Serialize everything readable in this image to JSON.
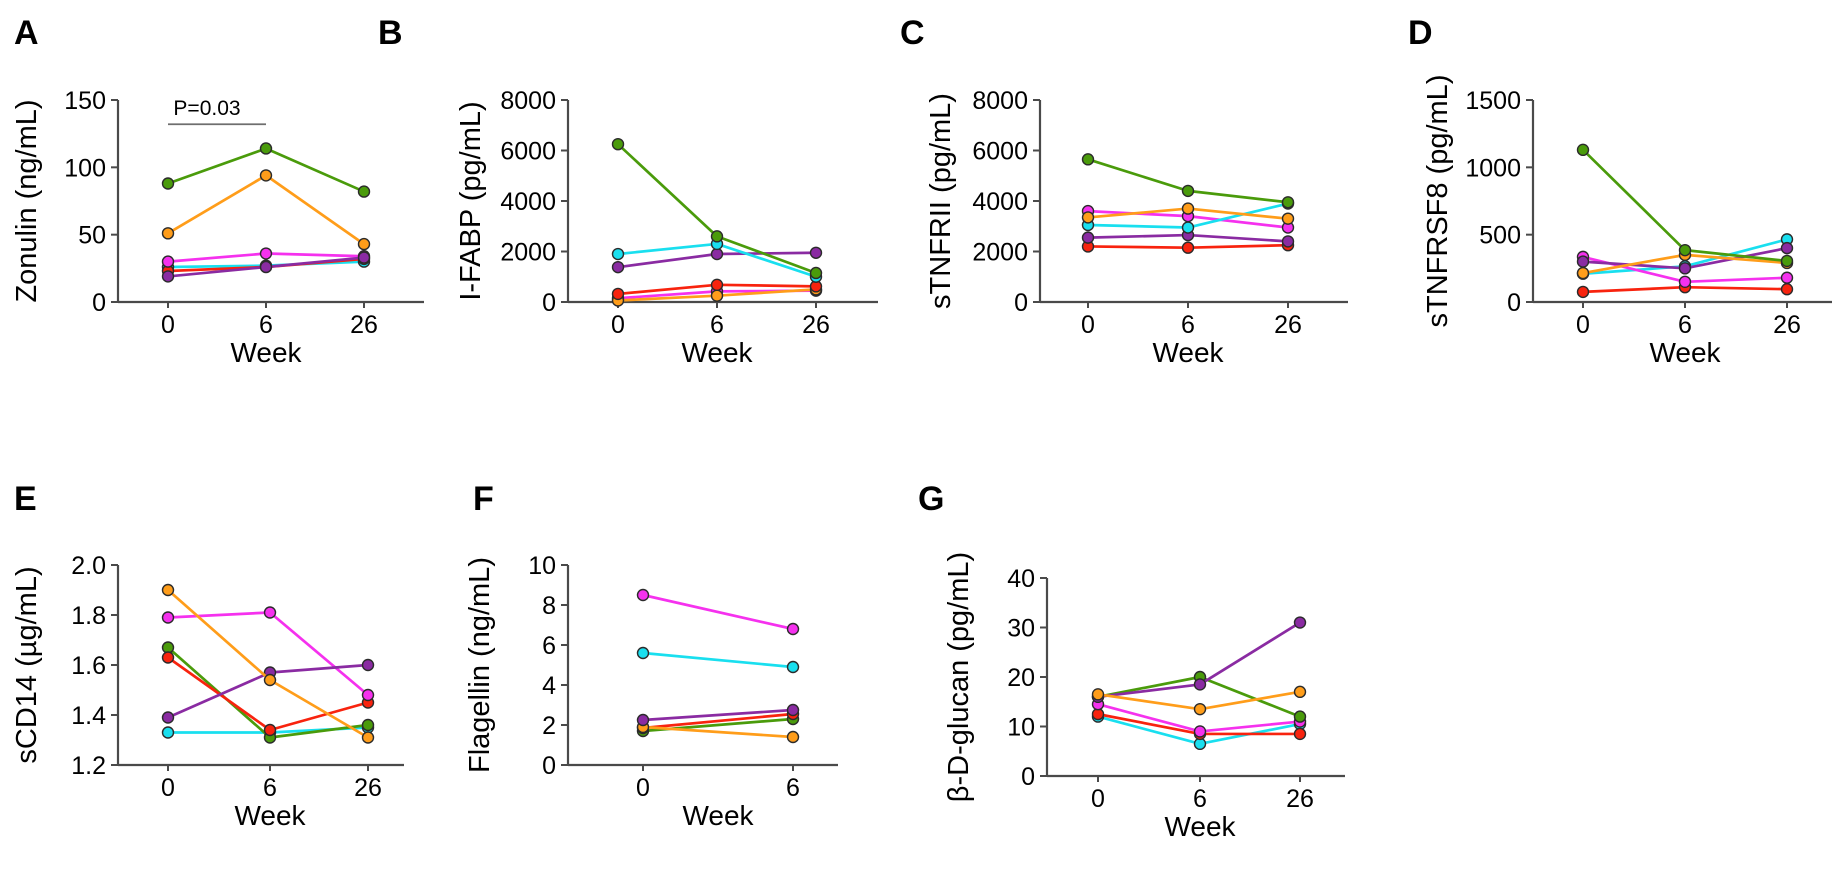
{
  "figure": {
    "background": "#ffffff",
    "text_color": "#000000",
    "axis_color": "#4a4a4a",
    "annotation_line_color": "#6e6e6e",
    "marker_outline": "#2b2b2b"
  },
  "palette": {
    "green": "#4a9b0b",
    "orange": "#ff9d1a",
    "red": "#f8230e",
    "magenta": "#f531ee",
    "purple": "#8a2ba2",
    "cyan": "#19dfef"
  },
  "chart_data": [
    {
      "id": "A",
      "panel_label": "A",
      "type": "line",
      "ylabel": "Zonulin (ng/mL)",
      "xlabel": "Week",
      "categories": [
        "0",
        "6",
        "26"
      ],
      "ylim": [
        0,
        150
      ],
      "yticks": [
        "0",
        "50",
        "100",
        "150"
      ],
      "annotation": {
        "text": "P=0.03",
        "from_cat": 0,
        "to_cat": 1,
        "line_y_value": 132,
        "text_y_value": 139
      },
      "series": [
        {
          "name": "participant-cyan",
          "color_key": "cyan",
          "values": [
            26,
            27,
            30
          ]
        },
        {
          "name": "participant-red",
          "color_key": "red",
          "values": [
            23,
            26,
            32
          ]
        },
        {
          "name": "participant-magenta",
          "color_key": "magenta",
          "values": [
            30,
            36,
            34
          ]
        },
        {
          "name": "participant-purple",
          "color_key": "purple",
          "values": [
            19,
            26,
            33
          ]
        },
        {
          "name": "participant-orange",
          "color_key": "orange",
          "values": [
            51,
            94,
            43
          ]
        },
        {
          "name": "participant-green",
          "color_key": "green",
          "values": [
            88,
            114,
            82
          ]
        }
      ]
    },
    {
      "id": "B",
      "panel_label": "B",
      "type": "line",
      "ylabel": "I-FABP (pg/mL)",
      "xlabel": "Week",
      "categories": [
        "0",
        "6",
        "26"
      ],
      "ylim": [
        0,
        8000
      ],
      "yticks": [
        "0",
        "2000",
        "4000",
        "6000",
        "8000"
      ],
      "annotation": null,
      "series": [
        {
          "name": "participant-magenta",
          "color_key": "magenta",
          "values": [
            150,
            420,
            450
          ]
        },
        {
          "name": "participant-orange",
          "color_key": "orange",
          "values": [
            60,
            250,
            500
          ]
        },
        {
          "name": "participant-red",
          "color_key": "red",
          "values": [
            320,
            680,
            620
          ]
        },
        {
          "name": "participant-purple",
          "color_key": "purple",
          "values": [
            1380,
            1900,
            1950
          ]
        },
        {
          "name": "participant-cyan",
          "color_key": "cyan",
          "values": [
            1900,
            2300,
            1000
          ]
        },
        {
          "name": "participant-green",
          "color_key": "green",
          "values": [
            6250,
            2600,
            1150
          ]
        }
      ]
    },
    {
      "id": "C",
      "panel_label": "C",
      "type": "line",
      "ylabel": "sTNFRII (pg/mL)",
      "xlabel": "Week",
      "categories": [
        "0",
        "6",
        "26"
      ],
      "ylim": [
        0,
        8000
      ],
      "yticks": [
        "0",
        "2000",
        "4000",
        "6000",
        "8000"
      ],
      "annotation": null,
      "series": [
        {
          "name": "participant-red",
          "color_key": "red",
          "values": [
            2200,
            2150,
            2250
          ]
        },
        {
          "name": "participant-purple",
          "color_key": "purple",
          "values": [
            2550,
            2650,
            2400
          ]
        },
        {
          "name": "participant-magenta",
          "color_key": "magenta",
          "values": [
            3600,
            3400,
            2950
          ]
        },
        {
          "name": "participant-cyan",
          "color_key": "cyan",
          "values": [
            3050,
            2950,
            3900
          ]
        },
        {
          "name": "participant-orange",
          "color_key": "orange",
          "values": [
            3350,
            3700,
            3300
          ]
        },
        {
          "name": "participant-green",
          "color_key": "green",
          "values": [
            5650,
            4400,
            3950
          ]
        }
      ]
    },
    {
      "id": "D",
      "panel_label": "D",
      "type": "line",
      "ylabel": "sTNFRSF8 (pg/mL)",
      "xlabel": "Week",
      "categories": [
        "0",
        "6",
        "26"
      ],
      "ylim": [
        0,
        1500
      ],
      "yticks": [
        "0",
        "500",
        "1000",
        "1500"
      ],
      "annotation": null,
      "series": [
        {
          "name": "participant-red",
          "color_key": "red",
          "values": [
            75,
            110,
            95
          ]
        },
        {
          "name": "participant-cyan",
          "color_key": "cyan",
          "values": [
            210,
            265,
            465
          ]
        },
        {
          "name": "participant-magenta",
          "color_key": "magenta",
          "values": [
            335,
            150,
            180
          ]
        },
        {
          "name": "participant-purple",
          "color_key": "purple",
          "values": [
            300,
            250,
            400
          ]
        },
        {
          "name": "participant-orange",
          "color_key": "orange",
          "values": [
            215,
            350,
            290
          ]
        },
        {
          "name": "participant-green",
          "color_key": "green",
          "values": [
            1130,
            385,
            305
          ]
        }
      ]
    },
    {
      "id": "E",
      "panel_label": "E",
      "type": "line",
      "ylabel": "sCD14 (µg/mL)",
      "xlabel": "Week",
      "categories": [
        "0",
        "6",
        "26"
      ],
      "ylim": [
        1.2,
        2.0
      ],
      "yticks": [
        "1.2",
        "1.4",
        "1.6",
        "1.8",
        "2.0"
      ],
      "annotation": null,
      "series": [
        {
          "name": "participant-cyan",
          "color_key": "cyan",
          "values": [
            1.33,
            1.33,
            1.35
          ]
        },
        {
          "name": "participant-green",
          "color_key": "green",
          "values": [
            1.67,
            1.31,
            1.36
          ]
        },
        {
          "name": "participant-red",
          "color_key": "red",
          "values": [
            1.63,
            1.34,
            1.45
          ]
        },
        {
          "name": "participant-magenta",
          "color_key": "magenta",
          "values": [
            1.79,
            1.81,
            1.48
          ]
        },
        {
          "name": "participant-purple",
          "color_key": "purple",
          "values": [
            1.39,
            1.57,
            1.6
          ]
        },
        {
          "name": "participant-orange",
          "color_key": "orange",
          "values": [
            1.9,
            1.54,
            1.31
          ]
        }
      ]
    },
    {
      "id": "F",
      "panel_label": "F",
      "type": "line",
      "ylabel": "Flagellin (ng/mL)",
      "xlabel": "Week",
      "categories": [
        "0",
        "6"
      ],
      "ylim": [
        0,
        10
      ],
      "yticks": [
        "0",
        "2",
        "4",
        "6",
        "8",
        "10"
      ],
      "annotation": null,
      "series": [
        {
          "name": "participant-green",
          "color_key": "green",
          "values": [
            1.7,
            2.3
          ]
        },
        {
          "name": "participant-red",
          "color_key": "red",
          "values": [
            1.85,
            2.55
          ]
        },
        {
          "name": "participant-orange",
          "color_key": "orange",
          "values": [
            1.9,
            1.4
          ]
        },
        {
          "name": "participant-purple",
          "color_key": "purple",
          "values": [
            2.25,
            2.75
          ]
        },
        {
          "name": "participant-cyan",
          "color_key": "cyan",
          "values": [
            5.6,
            4.9
          ]
        },
        {
          "name": "participant-magenta",
          "color_key": "magenta",
          "values": [
            8.5,
            6.8
          ]
        }
      ]
    },
    {
      "id": "G",
      "panel_label": "G",
      "type": "line",
      "ylabel": "β-D-glucan (pg/mL)",
      "xlabel": "Week",
      "categories": [
        "0",
        "6",
        "26"
      ],
      "ylim": [
        0,
        40
      ],
      "yticks": [
        "0",
        "10",
        "20",
        "30",
        "40"
      ],
      "annotation": null,
      "series": [
        {
          "name": "participant-cyan",
          "color_key": "cyan",
          "values": [
            12,
            6.5,
            10.5
          ]
        },
        {
          "name": "participant-red",
          "color_key": "red",
          "values": [
            12.5,
            8.5,
            8.5
          ]
        },
        {
          "name": "participant-magenta",
          "color_key": "magenta",
          "values": [
            14.5,
            9,
            11
          ]
        },
        {
          "name": "participant-green",
          "color_key": "green",
          "values": [
            16,
            20,
            12
          ]
        },
        {
          "name": "participant-purple",
          "color_key": "purple",
          "values": [
            16,
            18.5,
            31
          ]
        },
        {
          "name": "participant-orange",
          "color_key": "orange",
          "values": [
            16.5,
            13.5,
            17
          ]
        }
      ]
    }
  ]
}
